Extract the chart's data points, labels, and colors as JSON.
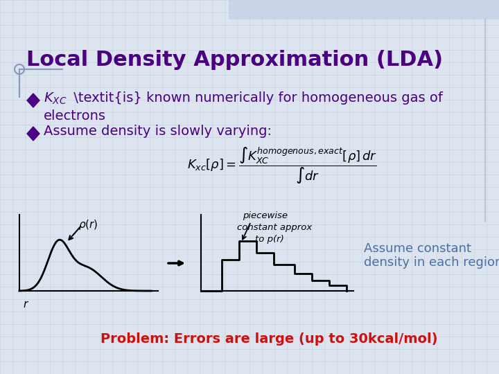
{
  "title": "Local Density Approximation (LDA)",
  "title_color": "#4B0082",
  "title_fontsize": 22,
  "text_color": "#4B0082",
  "diamond_color": "#4B0082",
  "bullet1_kxc": "$K_{XC}$",
  "bullet1_rest": " is known numerically for homogeneous gas of",
  "bullet1_cont": "electrons",
  "bullet2": "Assume density is slowly varying:",
  "assume_text_line1": "Assume constant",
  "assume_text_line2": "density in each region",
  "assume_color": "#4B6FA0",
  "problem_text": "Problem: Errors are large (up to 30kcal/mol)",
  "problem_color": "#CC1111",
  "background_top": "#C8D4E8",
  "background_main": "#DCE4F0",
  "grid_color": "#C4CCD8",
  "deco_line_color": "#8899BB"
}
